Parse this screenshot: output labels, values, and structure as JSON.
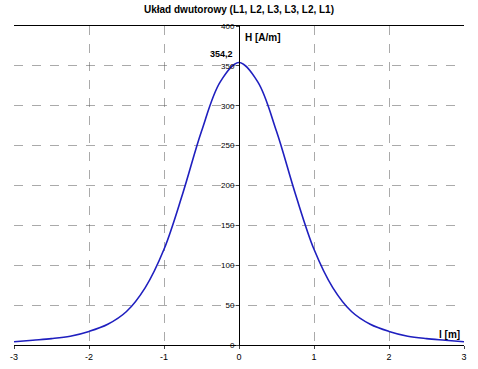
{
  "chart_data": {
    "type": "line",
    "title": "Układ dwutorowy (L1, L2, L3, L3, L2, L1)",
    "xlabel": "l [m]",
    "ylabel": "H [A/m]",
    "series": [
      {
        "name": "H",
        "color": "#1f1fbf",
        "x": [
          -3,
          -2.75,
          -2.5,
          -2.25,
          -2,
          -1.75,
          -1.5,
          -1.25,
          -1,
          -0.75,
          -0.5,
          -0.25,
          0,
          0.25,
          0.5,
          0.75,
          1,
          1.25,
          1.5,
          1.75,
          2,
          2.25,
          2.5,
          2.75,
          3
        ],
        "values": [
          4,
          6,
          8,
          11,
          17,
          26,
          42,
          72,
          120,
          190,
          268,
          330,
          354.2,
          330,
          268,
          190,
          120,
          72,
          42,
          26,
          17,
          11,
          8,
          6,
          4
        ]
      }
    ],
    "annotations": [
      {
        "text": "354,2",
        "x": 0,
        "y": 354.2
      }
    ],
    "xlim": [
      -3,
      3
    ],
    "xticks": [
      -3,
      -2,
      -1,
      0,
      1,
      2,
      3
    ],
    "ylim": [
      0,
      400
    ],
    "yticks": [
      0,
      50,
      100,
      150,
      200,
      250,
      300,
      350,
      400
    ],
    "grid": true
  }
}
